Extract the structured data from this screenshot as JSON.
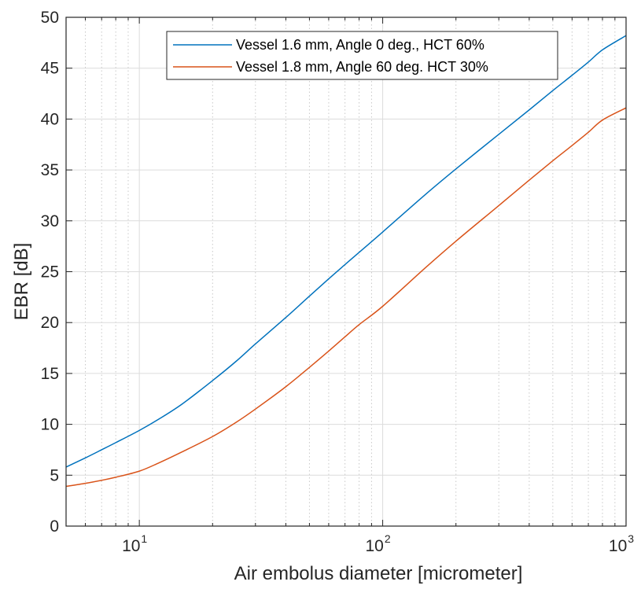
{
  "chart_data": {
    "type": "line",
    "xlabel": "Air embolus diameter [micrometer]",
    "ylabel": "EBR [dB]",
    "xscale": "log",
    "xlim": [
      5,
      1000
    ],
    "ylim": [
      0,
      50
    ],
    "yticks": [
      0,
      5,
      10,
      15,
      20,
      25,
      30,
      35,
      40,
      45,
      50
    ],
    "xticks": [
      {
        "value": 10,
        "base": "10",
        "exp": "1"
      },
      {
        "value": 100,
        "base": "10",
        "exp": "2"
      },
      {
        "value": 1000,
        "base": "10",
        "exp": "3"
      }
    ],
    "grid": true,
    "minor_grid": true,
    "legend_position": "top-right",
    "series": [
      {
        "name": "Vessel 1.6 mm, Angle 0 deg., HCT 60%",
        "color": "#0072BD",
        "x": [
          5,
          6,
          7,
          8,
          10,
          12,
          15,
          20,
          25,
          30,
          40,
          50,
          60,
          70,
          80,
          100,
          150,
          200,
          300,
          400,
          500,
          600,
          700,
          800,
          1000
        ],
        "y": [
          5.8,
          6.7,
          7.5,
          8.2,
          9.4,
          10.5,
          12.0,
          14.3,
          16.2,
          17.9,
          20.5,
          22.6,
          24.3,
          25.7,
          26.9,
          28.9,
          32.6,
          35.1,
          38.5,
          40.9,
          42.8,
          44.3,
          45.6,
          46.8,
          48.2
        ]
      },
      {
        "name": "Vessel 1.8 mm, Angle 60 deg. HCT 30%",
        "color": "#D95319",
        "x": [
          5,
          6,
          7,
          8,
          10,
          12,
          15,
          20,
          25,
          30,
          40,
          50,
          60,
          70,
          80,
          100,
          150,
          200,
          300,
          400,
          500,
          600,
          700,
          800,
          1000
        ],
        "y": [
          3.9,
          4.2,
          4.5,
          4.8,
          5.4,
          6.2,
          7.3,
          8.8,
          10.2,
          11.5,
          13.7,
          15.6,
          17.2,
          18.6,
          19.8,
          21.6,
          25.4,
          28.0,
          31.5,
          34.0,
          35.9,
          37.4,
          38.7,
          39.9,
          41.1
        ]
      }
    ]
  }
}
